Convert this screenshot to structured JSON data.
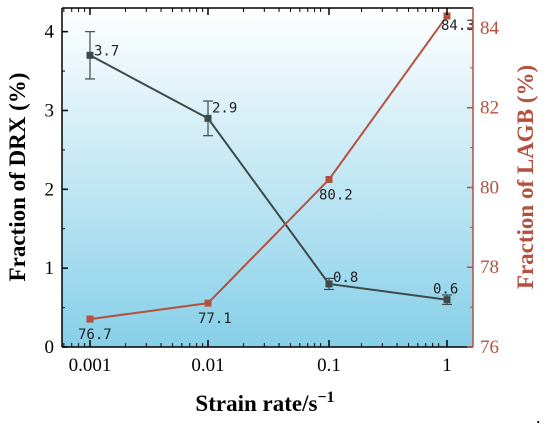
{
  "chart_data": {
    "type": "line",
    "x": [
      "0.001",
      "0.01",
      "0.1",
      "1"
    ],
    "x_values": [
      0.001,
      0.01,
      0.1,
      1
    ],
    "x_scale": "log",
    "xlabel_main": "Strain rate/s",
    "xlabel_sup": "−1",
    "ylabel_left": "Fraction of DRX (%)",
    "ylabel_right": "Fraction of LAGB (%)",
    "ylim_left": [
      0,
      4.3
    ],
    "ylim_right": [
      76,
      84.5
    ],
    "yticks_left": [
      "0",
      "1",
      "2",
      "3",
      "4"
    ],
    "yticks_right": [
      "76",
      "78",
      "80",
      "82",
      "84"
    ],
    "series": [
      {
        "axis": "left",
        "values": [
          3.7,
          2.9,
          0.8,
          0.6
        ],
        "errors": [
          0.3,
          0.22,
          0.07,
          0.06
        ],
        "labels": [
          "3.7",
          "2.9",
          "0.8",
          "0.6"
        ],
        "color": "#3d4a47"
      },
      {
        "axis": "right",
        "values": [
          76.7,
          77.1,
          80.2,
          84.3
        ],
        "labels": [
          "76.7",
          "77.1",
          "80.2",
          "84.3"
        ],
        "color": "#b5503f"
      }
    ],
    "grid": false,
    "legend": "none",
    "background_gradient": [
      "#ffffff",
      "#86cfe8"
    ],
    "left_axis_color": "#000000",
    "right_axis_color": "#b5503f"
  },
  "trailing_mark": "."
}
